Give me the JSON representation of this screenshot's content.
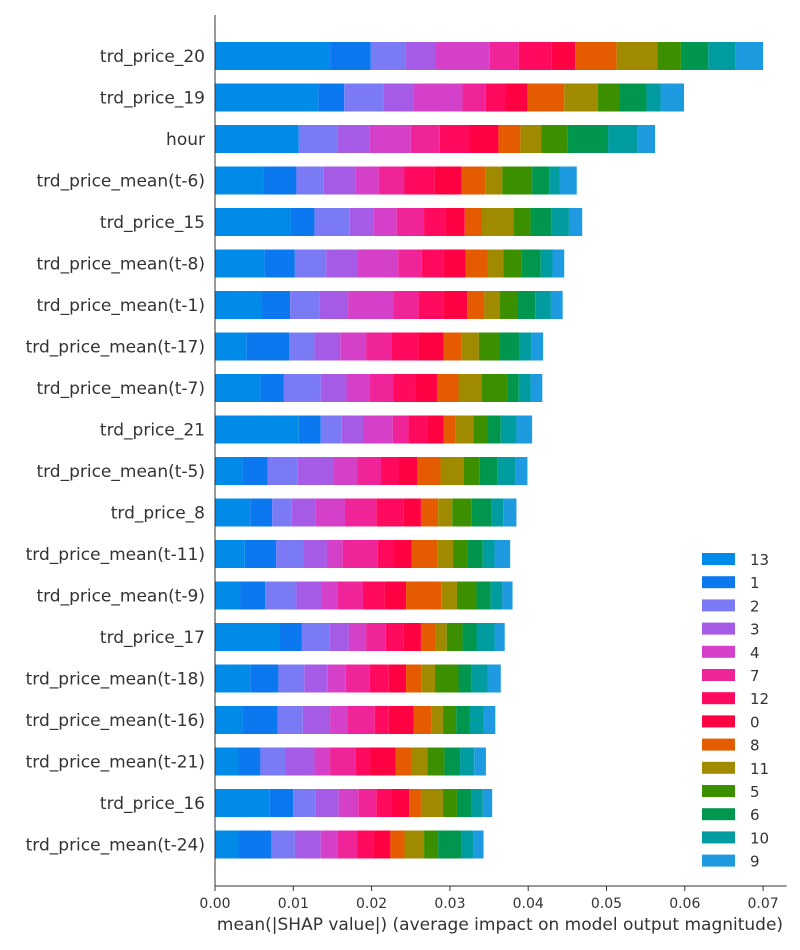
{
  "chart_data": {
    "type": "bar",
    "orientation": "horizontal",
    "stacked": true,
    "xlabel": "mean(|SHAP value|) (average impact on model output magnitude)",
    "xlim": [
      0,
      0.073
    ],
    "xticks": [
      "0.00",
      "0.01",
      "0.02",
      "0.03",
      "0.04",
      "0.05",
      "0.06",
      "0.07"
    ],
    "legend_position": "bottom-right",
    "categories": [
      "trd_price_20",
      "trd_price_19",
      "hour",
      "trd_price_mean(t-6)",
      "trd_price_15",
      "trd_price_mean(t-8)",
      "trd_price_mean(t-1)",
      "trd_price_mean(t-17)",
      "trd_price_mean(t-7)",
      "trd_price_21",
      "trd_price_mean(t-5)",
      "trd_price_8",
      "trd_price_mean(t-11)",
      "trd_price_mean(t-9)",
      "trd_price_17",
      "trd_price_mean(t-18)",
      "trd_price_mean(t-16)",
      "trd_price_mean(t-21)",
      "trd_price_16",
      "trd_price_mean(t-24)"
    ],
    "series": [
      {
        "name": "13",
        "color": "#008BE8",
        "values": [
          0.0147,
          0.0132,
          0.0107,
          0.0062,
          0.0097,
          0.0063,
          0.006,
          0.004,
          0.0058,
          0.0107,
          0.0035,
          0.0045,
          0.0038,
          0.0032,
          0.0083,
          0.0045,
          0.0035,
          0.003,
          0.007,
          0.003
        ]
      },
      {
        "name": "1",
        "color": "#0B78F0",
        "values": [
          0.0052,
          0.0033,
          0.0,
          0.0042,
          0.003,
          0.0039,
          0.0036,
          0.0055,
          0.003,
          0.0028,
          0.0032,
          0.0028,
          0.004,
          0.0032,
          0.0028,
          0.0036,
          0.0045,
          0.0028,
          0.003,
          0.0042
        ]
      },
      {
        "name": "2",
        "color": "#7A7AF5",
        "values": [
          0.0045,
          0.005,
          0.005,
          0.0035,
          0.0045,
          0.004,
          0.0038,
          0.0032,
          0.0047,
          0.0027,
          0.0038,
          0.0025,
          0.0035,
          0.004,
          0.0035,
          0.0033,
          0.0032,
          0.0032,
          0.0028,
          0.003
        ]
      },
      {
        "name": "3",
        "color": "#A65BE6",
        "values": [
          0.0037,
          0.0038,
          0.004,
          0.004,
          0.003,
          0.004,
          0.0036,
          0.0033,
          0.0033,
          0.0027,
          0.0047,
          0.003,
          0.003,
          0.0032,
          0.0025,
          0.003,
          0.0035,
          0.0037,
          0.003,
          0.0033
        ]
      },
      {
        "name": "4",
        "color": "#D440C8",
        "values": [
          0.007,
          0.0063,
          0.0053,
          0.003,
          0.003,
          0.0052,
          0.0058,
          0.0033,
          0.003,
          0.0038,
          0.003,
          0.0038,
          0.002,
          0.002,
          0.0022,
          0.0023,
          0.0022,
          0.002,
          0.0025,
          0.0022
        ]
      },
      {
        "name": "7",
        "color": "#F02499",
        "values": [
          0.0037,
          0.003,
          0.0037,
          0.0033,
          0.0035,
          0.003,
          0.0032,
          0.0032,
          0.003,
          0.002,
          0.003,
          0.004,
          0.0045,
          0.0033,
          0.0025,
          0.003,
          0.0035,
          0.0033,
          0.0023,
          0.0025
        ]
      },
      {
        "name": "12",
        "color": "#FF0A5E",
        "values": [
          0.0042,
          0.0025,
          0.0038,
          0.0038,
          0.0027,
          0.0028,
          0.0032,
          0.0035,
          0.0028,
          0.0025,
          0.0023,
          0.0035,
          0.002,
          0.0028,
          0.0023,
          0.0025,
          0.0018,
          0.0018,
          0.002,
          0.002
        ]
      },
      {
        "name": "0",
        "color": "#FF0043",
        "values": [
          0.003,
          0.0028,
          0.0037,
          0.0035,
          0.0025,
          0.0028,
          0.003,
          0.0032,
          0.0028,
          0.002,
          0.0023,
          0.0022,
          0.0023,
          0.0027,
          0.0022,
          0.0022,
          0.0032,
          0.0033,
          0.0022,
          0.0022
        ]
      },
      {
        "name": "8",
        "color": "#E55C00",
        "values": [
          0.0053,
          0.0047,
          0.0028,
          0.003,
          0.0022,
          0.0028,
          0.0022,
          0.0023,
          0.0027,
          0.0015,
          0.003,
          0.0022,
          0.0033,
          0.0045,
          0.0018,
          0.002,
          0.0022,
          0.002,
          0.0015,
          0.0018
        ]
      },
      {
        "name": "11",
        "color": "#A08A00",
        "values": [
          0.0052,
          0.0043,
          0.0027,
          0.0022,
          0.004,
          0.002,
          0.002,
          0.0022,
          0.003,
          0.0023,
          0.003,
          0.0018,
          0.002,
          0.002,
          0.0015,
          0.0017,
          0.0015,
          0.002,
          0.0028,
          0.0025
        ]
      },
      {
        "name": "5",
        "color": "#3C9000",
        "values": [
          0.003,
          0.0027,
          0.0033,
          0.0038,
          0.0022,
          0.0023,
          0.0023,
          0.0027,
          0.0032,
          0.0018,
          0.002,
          0.0025,
          0.0018,
          0.0025,
          0.002,
          0.003,
          0.0017,
          0.0022,
          0.0018,
          0.0018
        ]
      },
      {
        "name": "6",
        "color": "#00964D",
        "values": [
          0.0035,
          0.0035,
          0.0052,
          0.0022,
          0.0027,
          0.0025,
          0.0022,
          0.0025,
          0.0015,
          0.0017,
          0.0023,
          0.0025,
          0.002,
          0.0018,
          0.0018,
          0.0017,
          0.0017,
          0.002,
          0.0018,
          0.003
        ]
      },
      {
        "name": "10",
        "color": "#009CA0",
        "values": [
          0.0035,
          0.0018,
          0.0038,
          0.0013,
          0.0022,
          0.0015,
          0.002,
          0.0015,
          0.0015,
          0.002,
          0.0023,
          0.0015,
          0.0015,
          0.0015,
          0.0023,
          0.002,
          0.0018,
          0.0018,
          0.0015,
          0.0015
        ]
      },
      {
        "name": "9",
        "color": "#1E9AE0",
        "values": [
          0.0035,
          0.003,
          0.0022,
          0.0022,
          0.0017,
          0.0015,
          0.0015,
          0.0015,
          0.0015,
          0.002,
          0.0015,
          0.0017,
          0.002,
          0.0013,
          0.0013,
          0.0017,
          0.0015,
          0.0015,
          0.0012,
          0.0013
        ]
      }
    ]
  }
}
